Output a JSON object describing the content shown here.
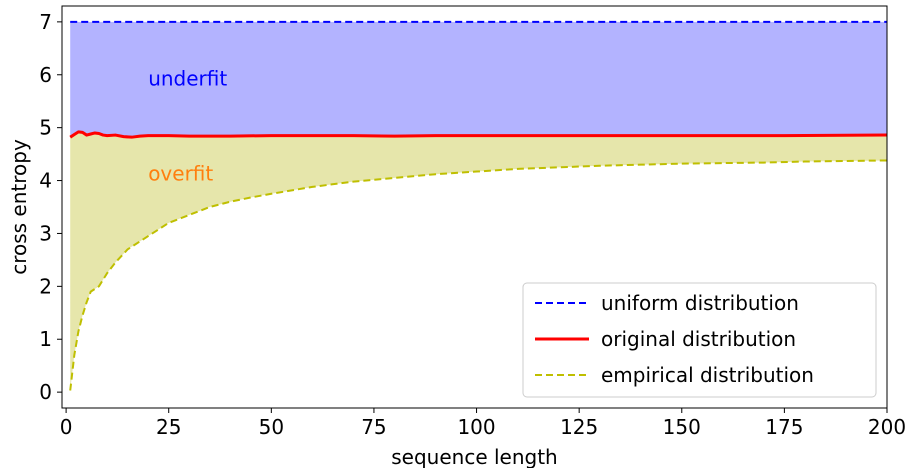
{
  "chart_data": {
    "type": "area",
    "xlabel": "sequence length",
    "ylabel": "cross entropy",
    "xlim": [
      -1,
      200
    ],
    "ylim": [
      -0.3,
      7.3
    ],
    "xticks": [
      0,
      25,
      50,
      75,
      100,
      125,
      150,
      175,
      200
    ],
    "yticks": [
      0,
      1,
      2,
      3,
      4,
      5,
      6,
      7
    ],
    "grid": false,
    "legend_position": "lower-right",
    "series": [
      {
        "name": "uniform distribution",
        "color": "#0000ff",
        "style": "dashed",
        "x": [
          1,
          200
        ],
        "y": [
          7.0,
          7.0
        ]
      },
      {
        "name": "original distribution",
        "color": "#ff0000",
        "style": "solid",
        "x": [
          1,
          2,
          3,
          4,
          5,
          6,
          7,
          8,
          9,
          10,
          12,
          14,
          16,
          18,
          20,
          25,
          30,
          35,
          40,
          50,
          60,
          70,
          80,
          90,
          100,
          125,
          150,
          175,
          200
        ],
        "y": [
          4.82,
          4.87,
          4.92,
          4.91,
          4.86,
          4.88,
          4.9,
          4.89,
          4.86,
          4.85,
          4.86,
          4.83,
          4.82,
          4.84,
          4.85,
          4.85,
          4.84,
          4.84,
          4.84,
          4.85,
          4.85,
          4.85,
          4.84,
          4.85,
          4.85,
          4.85,
          4.85,
          4.85,
          4.86
        ]
      },
      {
        "name": "empirical distribution",
        "color": "#bfbf00",
        "style": "dashed",
        "x": [
          1,
          2,
          3,
          4,
          5,
          6,
          7,
          8,
          10,
          12,
          15,
          20,
          25,
          30,
          35,
          40,
          45,
          50,
          60,
          70,
          80,
          90,
          100,
          110,
          120,
          130,
          140,
          150,
          160,
          170,
          180,
          190,
          200
        ],
        "y": [
          0.03,
          0.7,
          1.15,
          1.45,
          1.7,
          1.9,
          1.95,
          2.0,
          2.25,
          2.45,
          2.7,
          2.95,
          3.2,
          3.35,
          3.5,
          3.6,
          3.68,
          3.75,
          3.88,
          3.98,
          4.05,
          4.12,
          4.17,
          4.22,
          4.25,
          4.28,
          4.3,
          4.32,
          4.33,
          4.34,
          4.36,
          4.37,
          4.38
        ]
      }
    ],
    "fills": [
      {
        "between": [
          "original distribution",
          "uniform distribution"
        ],
        "color": "#8080ff",
        "opacity": 0.6
      },
      {
        "between": [
          "empirical distribution",
          "original distribution"
        ],
        "color": "#d6d673",
        "opacity": 0.6
      }
    ],
    "annotations": [
      {
        "text": "underfit",
        "x": 20,
        "y": 5.8,
        "color": "#0000ff"
      },
      {
        "text": "overfit",
        "x": 20,
        "y": 4.0,
        "color": "#ff7f0e"
      }
    ]
  }
}
